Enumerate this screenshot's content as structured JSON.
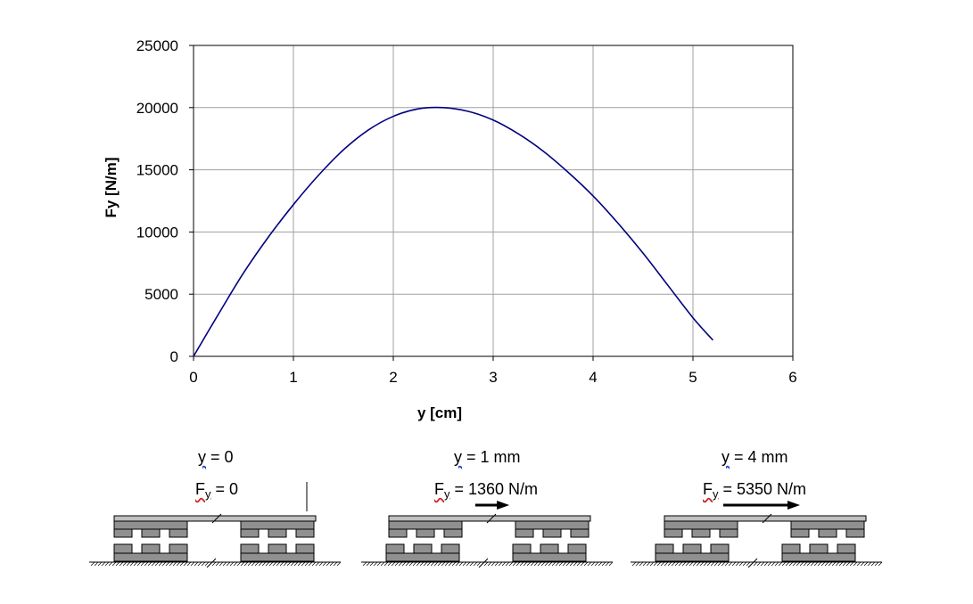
{
  "chart_data": {
    "type": "line",
    "title": "",
    "xlabel": "y [cm]",
    "ylabel": "Fy [N/m]",
    "xlim": [
      0,
      6
    ],
    "ylim": [
      0,
      25000
    ],
    "x_ticks": [
      "0",
      "1",
      "2",
      "3",
      "4",
      "5",
      "6"
    ],
    "y_ticks": [
      "0",
      "5000",
      "10000",
      "15000",
      "20000",
      "25000"
    ],
    "grid": true,
    "legend": "none",
    "series": [
      {
        "color": "#000080",
        "x": [
          0,
          0.25,
          0.5,
          0.75,
          1.0,
          1.25,
          1.5,
          1.75,
          2.0,
          2.25,
          2.5,
          2.75,
          3.0,
          3.25,
          3.5,
          3.75,
          4.0,
          4.25,
          4.5,
          4.75,
          5.0,
          5.2
        ],
        "y": [
          0,
          3400,
          6700,
          9600,
          12200,
          14550,
          16600,
          18200,
          19300,
          19900,
          20000,
          19700,
          19000,
          17900,
          16500,
          14800,
          12900,
          10700,
          8300,
          5700,
          3100,
          1300
        ]
      }
    ]
  },
  "panels": [
    {
      "y_var": "y",
      "y_rest": " = 0",
      "f_var": "F",
      "f_sub": "y",
      "f_rest": " = 0",
      "force": 0
    },
    {
      "y_var": "y",
      "y_rest": " = 1 mm",
      "f_var": "F",
      "f_sub": "y",
      "f_rest": " = 1360 N/m",
      "force": 1360
    },
    {
      "y_var": "y",
      "y_rest": " = 4 mm",
      "f_var": "F",
      "f_sub": "y",
      "f_rest": " = 5350 N/m",
      "force": 5350
    }
  ],
  "colors": {
    "curve": "#000080",
    "grid": "#a0a0a0",
    "magnet_fill": "#909090",
    "plate_fill": "#c0c0c0"
  }
}
